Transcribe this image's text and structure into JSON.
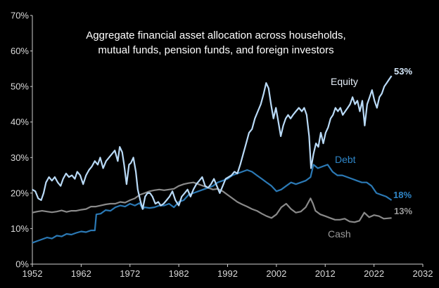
{
  "chart_data": {
    "type": "line",
    "title_lines": [
      "Aggregate financial asset allocation across households,",
      "mutual funds, pension funds, and foreign investors"
    ],
    "xlim": [
      1952,
      2032
    ],
    "ylim": [
      0,
      70
    ],
    "x_ticks": [
      "1952",
      "1962",
      "1972",
      "1982",
      "1992",
      "2002",
      "2012",
      "2022",
      "2032"
    ],
    "y_ticks": [
      "0%",
      "10%",
      "20%",
      "30%",
      "40%",
      "50%",
      "60%",
      "70%"
    ],
    "grid": false,
    "legend": "none",
    "series": [
      {
        "name": "Equity",
        "color": "#b9daf7",
        "end_label": "53%",
        "points": [
          [
            1952.0,
            21
          ],
          [
            1952.6,
            20.5
          ],
          [
            1953.2,
            18.5
          ],
          [
            1953.8,
            18
          ],
          [
            1954.3,
            20
          ],
          [
            1954.8,
            23
          ],
          [
            1955.4,
            24.5
          ],
          [
            1956,
            23.5
          ],
          [
            1956.6,
            24.5
          ],
          [
            1957.2,
            23
          ],
          [
            1957.8,
            22
          ],
          [
            1958.3,
            24
          ],
          [
            1958.9,
            25.5
          ],
          [
            1959.5,
            24.5
          ],
          [
            1960.1,
            25
          ],
          [
            1960.7,
            24
          ],
          [
            1961.2,
            26
          ],
          [
            1961.8,
            25
          ],
          [
            1962.4,
            22.5
          ],
          [
            1963,
            25
          ],
          [
            1963.6,
            26.5
          ],
          [
            1964.2,
            27.5
          ],
          [
            1964.8,
            29
          ],
          [
            1965.4,
            28
          ],
          [
            1965.9,
            30
          ],
          [
            1966.5,
            27
          ],
          [
            1967.1,
            29
          ],
          [
            1967.7,
            30
          ],
          [
            1968.3,
            31
          ],
          [
            1968.9,
            32
          ],
          [
            1969.5,
            29
          ],
          [
            1969.9,
            33
          ],
          [
            1970.4,
            31.5
          ],
          [
            1970.8,
            28
          ],
          [
            1971.3,
            22.5
          ],
          [
            1971.8,
            28
          ],
          [
            1972.2,
            28.5
          ],
          [
            1972.7,
            30
          ],
          [
            1973.2,
            26
          ],
          [
            1973.6,
            21
          ],
          [
            1974.1,
            18
          ],
          [
            1974.6,
            15.5
          ],
          [
            1975.1,
            19
          ],
          [
            1975.6,
            20
          ],
          [
            1976.1,
            20
          ],
          [
            1976.6,
            19
          ],
          [
            1977.2,
            17
          ],
          [
            1977.8,
            17.5
          ],
          [
            1978.3,
            16.5
          ],
          [
            1978.9,
            17
          ],
          [
            1979.5,
            18
          ],
          [
            1980.1,
            19
          ],
          [
            1980.7,
            20.5
          ],
          [
            1981.3,
            18
          ],
          [
            1982,
            16.5
          ],
          [
            1982.6,
            19
          ],
          [
            1983.2,
            20
          ],
          [
            1983.8,
            21
          ],
          [
            1984.4,
            19
          ],
          [
            1985,
            21
          ],
          [
            1985.6,
            22.5
          ],
          [
            1986.2,
            23.5
          ],
          [
            1986.8,
            24.5
          ],
          [
            1987.4,
            22
          ],
          [
            1988,
            21.5
          ],
          [
            1988.6,
            22.5
          ],
          [
            1989.2,
            24
          ],
          [
            1989.8,
            22
          ],
          [
            1990.4,
            20
          ],
          [
            1991,
            22
          ],
          [
            1991.6,
            24
          ],
          [
            1992.2,
            24.5
          ],
          [
            1992.8,
            25
          ],
          [
            1993.4,
            26
          ],
          [
            1994,
            25.5
          ],
          [
            1994.6,
            28
          ],
          [
            1995.2,
            31
          ],
          [
            1995.8,
            34
          ],
          [
            1996.4,
            37
          ],
          [
            1997,
            38
          ],
          [
            1997.6,
            41
          ],
          [
            1998.2,
            43
          ],
          [
            1998.8,
            45
          ],
          [
            1999.4,
            48
          ],
          [
            1999.9,
            51
          ],
          [
            2000.4,
            49.5
          ],
          [
            2000.9,
            45
          ],
          [
            2001.4,
            41
          ],
          [
            2001.9,
            44
          ],
          [
            2002.4,
            40
          ],
          [
            2002.9,
            36
          ],
          [
            2003.4,
            39
          ],
          [
            2003.9,
            41
          ],
          [
            2004.4,
            42
          ],
          [
            2004.9,
            41
          ],
          [
            2005.4,
            42
          ],
          [
            2006,
            43
          ],
          [
            2006.6,
            44
          ],
          [
            2007.2,
            43
          ],
          [
            2007.7,
            44
          ],
          [
            2008.2,
            42
          ],
          [
            2008.7,
            36
          ],
          [
            2009.1,
            27
          ],
          [
            2009.6,
            31
          ],
          [
            2010.1,
            34
          ],
          [
            2010.6,
            33
          ],
          [
            2011.1,
            37
          ],
          [
            2011.6,
            34
          ],
          [
            2012.1,
            37
          ],
          [
            2012.6,
            38.5
          ],
          [
            2013.1,
            41
          ],
          [
            2013.6,
            42
          ],
          [
            2014.1,
            44
          ],
          [
            2014.6,
            43
          ],
          [
            2015.1,
            44
          ],
          [
            2015.6,
            42
          ],
          [
            2016.1,
            43
          ],
          [
            2016.6,
            44
          ],
          [
            2017.1,
            45
          ],
          [
            2017.6,
            47
          ],
          [
            2018.1,
            45
          ],
          [
            2018.6,
            46
          ],
          [
            2019.1,
            43
          ],
          [
            2019.6,
            46
          ],
          [
            2020.1,
            39
          ],
          [
            2020.6,
            45
          ],
          [
            2021.1,
            47
          ],
          [
            2021.6,
            49
          ],
          [
            2022.1,
            46
          ],
          [
            2022.6,
            44
          ],
          [
            2023.1,
            47
          ],
          [
            2023.6,
            48
          ],
          [
            2024.1,
            50
          ],
          [
            2024.6,
            51
          ],
          [
            2025.1,
            52
          ],
          [
            2025.6,
            53
          ]
        ]
      },
      {
        "name": "Debt",
        "color": "#2b79b5",
        "end_label": "18%",
        "points": [
          [
            1952,
            6
          ],
          [
            1953,
            6.5
          ],
          [
            1954,
            7
          ],
          [
            1955,
            7.5
          ],
          [
            1956,
            7.2
          ],
          [
            1957,
            8
          ],
          [
            1958,
            7.8
          ],
          [
            1959,
            8.5
          ],
          [
            1960,
            8.3
          ],
          [
            1961,
            8.8
          ],
          [
            1962,
            9.2
          ],
          [
            1963,
            9
          ],
          [
            1964,
            9.5
          ],
          [
            1964.8,
            9.5
          ],
          [
            1965.1,
            14
          ],
          [
            1966,
            14.2
          ],
          [
            1967,
            15.2
          ],
          [
            1968,
            15
          ],
          [
            1969,
            16
          ],
          [
            1970,
            16.5
          ],
          [
            1971,
            16.2
          ],
          [
            1972,
            17
          ],
          [
            1973,
            16.5
          ],
          [
            1974,
            17.2
          ],
          [
            1974.6,
            15.5
          ],
          [
            1975,
            16
          ],
          [
            1976,
            15.8
          ],
          [
            1977,
            16
          ],
          [
            1978,
            16.5
          ],
          [
            1979,
            16.5
          ],
          [
            1980,
            17
          ],
          [
            1981,
            16
          ],
          [
            1982,
            17.5
          ],
          [
            1983,
            18
          ],
          [
            1984,
            19.5
          ],
          [
            1985,
            20
          ],
          [
            1986,
            20.5
          ],
          [
            1987,
            21
          ],
          [
            1988,
            21.5
          ],
          [
            1989,
            22
          ],
          [
            1990,
            23
          ],
          [
            1991,
            23.5
          ],
          [
            1992,
            24
          ],
          [
            1993,
            25
          ],
          [
            1994,
            25.5
          ],
          [
            1995,
            26
          ],
          [
            1996,
            26.5
          ],
          [
            1997,
            26
          ],
          [
            1998,
            25
          ],
          [
            1999,
            24
          ],
          [
            2000,
            23
          ],
          [
            2001,
            22
          ],
          [
            2002,
            20.5
          ],
          [
            2003,
            21
          ],
          [
            2004,
            22
          ],
          [
            2005,
            23
          ],
          [
            2006,
            22.5
          ],
          [
            2007,
            23
          ],
          [
            2008,
            23.5
          ],
          [
            2009,
            24.5
          ],
          [
            2009.6,
            28
          ],
          [
            2010.5,
            27
          ],
          [
            2011.5,
            27.5
          ],
          [
            2012.5,
            28
          ],
          [
            2013.5,
            26
          ],
          [
            2014.5,
            25
          ],
          [
            2015.5,
            25
          ],
          [
            2016.5,
            24.5
          ],
          [
            2017.5,
            24
          ],
          [
            2018.5,
            23.5
          ],
          [
            2019.5,
            23
          ],
          [
            2020.5,
            23
          ],
          [
            2021.5,
            22
          ],
          [
            2022.5,
            20
          ],
          [
            2023.5,
            19.5
          ],
          [
            2024.5,
            19
          ],
          [
            2025.6,
            18
          ]
        ]
      },
      {
        "name": "Cash",
        "color": "#8a8a8a",
        "end_label": "13%",
        "points": [
          [
            1952,
            14.5
          ],
          [
            1953,
            14.8
          ],
          [
            1954,
            15
          ],
          [
            1955,
            14.8
          ],
          [
            1956,
            14.6
          ],
          [
            1957,
            14.8
          ],
          [
            1958,
            15.1
          ],
          [
            1959,
            14.7
          ],
          [
            1960,
            15
          ],
          [
            1961,
            15
          ],
          [
            1962,
            15.3
          ],
          [
            1963,
            15.5
          ],
          [
            1964,
            16.2
          ],
          [
            1965,
            16.2
          ],
          [
            1966,
            16.5
          ],
          [
            1967,
            16.8
          ],
          [
            1968,
            17
          ],
          [
            1969,
            17
          ],
          [
            1970,
            17.5
          ],
          [
            1971,
            17.3
          ],
          [
            1972,
            18
          ],
          [
            1973,
            18.5
          ],
          [
            1974,
            19.5
          ],
          [
            1975,
            20
          ],
          [
            1976,
            20.5
          ],
          [
            1977,
            20.8
          ],
          [
            1978,
            21
          ],
          [
            1979,
            20.8
          ],
          [
            1980,
            21
          ],
          [
            1981,
            21.2
          ],
          [
            1982,
            22
          ],
          [
            1983,
            22.5
          ],
          [
            1984,
            22.8
          ],
          [
            1985,
            23
          ],
          [
            1986,
            22.5
          ],
          [
            1987,
            22
          ],
          [
            1988,
            21.5
          ],
          [
            1989,
            21
          ],
          [
            1990,
            21.2
          ],
          [
            1991,
            20.5
          ],
          [
            1992,
            19.5
          ],
          [
            1993,
            18.5
          ],
          [
            1994,
            17.5
          ],
          [
            1995,
            16.8
          ],
          [
            1996,
            16.2
          ],
          [
            1997,
            15.5
          ],
          [
            1998,
            15
          ],
          [
            1999,
            14.2
          ],
          [
            2000,
            13.5
          ],
          [
            2001,
            13
          ],
          [
            2002,
            14
          ],
          [
            2003,
            16
          ],
          [
            2004,
            17
          ],
          [
            2005,
            15.5
          ],
          [
            2006,
            14.5
          ],
          [
            2007,
            14.8
          ],
          [
            2008,
            16
          ],
          [
            2009,
            18.5
          ],
          [
            2009.5,
            17
          ],
          [
            2010,
            15
          ],
          [
            2011,
            14
          ],
          [
            2012,
            13.5
          ],
          [
            2013,
            13
          ],
          [
            2014,
            12.5
          ],
          [
            2015,
            12.5
          ],
          [
            2016,
            12.8
          ],
          [
            2017,
            12
          ],
          [
            2018,
            11.8
          ],
          [
            2019,
            12.2
          ],
          [
            2020,
            14.5
          ],
          [
            2021,
            13.2
          ],
          [
            2022,
            13.8
          ],
          [
            2023,
            13.5
          ],
          [
            2024,
            12.8
          ],
          [
            2025.6,
            13
          ]
        ]
      }
    ]
  }
}
